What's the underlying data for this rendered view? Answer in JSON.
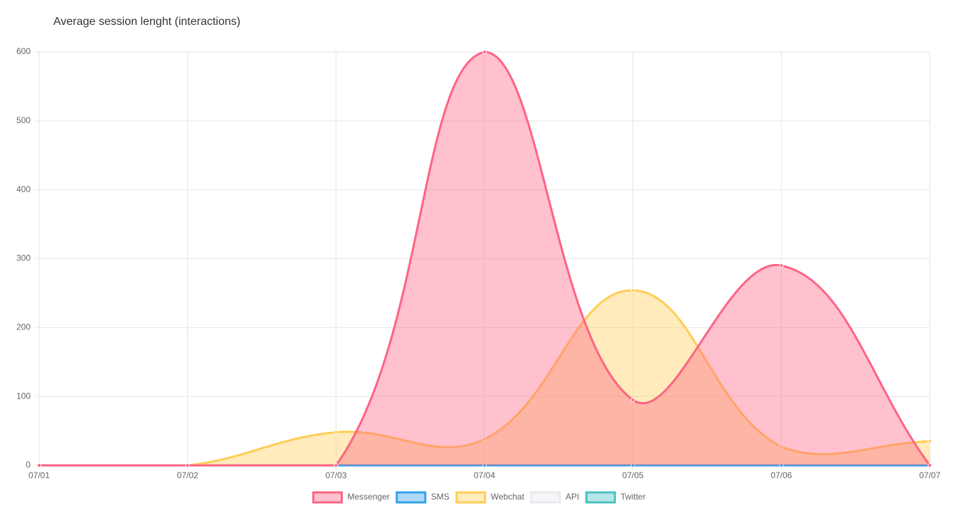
{
  "chart_data": {
    "type": "area",
    "title": "Average session lenght (interactions)",
    "categories": [
      "07/01",
      "07/02",
      "07/03",
      "07/04",
      "07/05",
      "07/06",
      "07/07"
    ],
    "series": [
      {
        "name": "Messenger",
        "color": "#ff6384",
        "values": [
          0,
          0,
          0,
          600,
          95,
          290,
          0
        ]
      },
      {
        "name": "SMS",
        "color": "#36a2eb",
        "values": [
          0,
          0,
          0,
          0,
          0,
          0,
          0
        ]
      },
      {
        "name": "Webchat",
        "color": "#ffcd56",
        "values": [
          0,
          0,
          48,
          38,
          254,
          27,
          35
        ]
      },
      {
        "name": "API",
        "color": "#e7e9ed",
        "values": [
          0,
          0,
          0,
          0,
          0,
          0,
          0
        ]
      },
      {
        "name": "Twitter",
        "color": "#4bc0c0",
        "values": [
          0,
          0,
          0,
          0,
          0,
          0,
          0
        ]
      }
    ],
    "ylim": [
      0,
      600
    ],
    "yticks": [
      0,
      100,
      200,
      300,
      400,
      500,
      600
    ],
    "grid": true,
    "legend": "bottom"
  }
}
